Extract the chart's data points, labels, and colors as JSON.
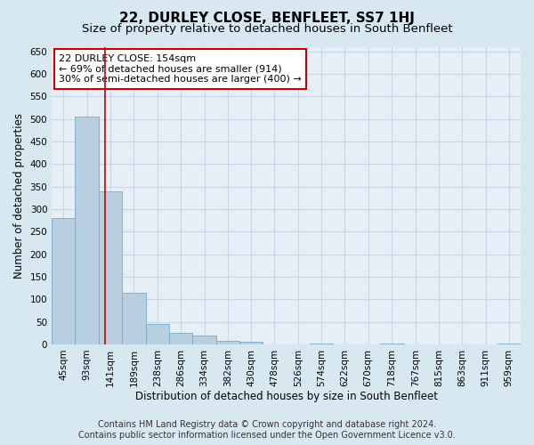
{
  "title": "22, DURLEY CLOSE, BENFLEET, SS7 1HJ",
  "subtitle": "Size of property relative to detached houses in South Benfleet",
  "xlabel": "Distribution of detached houses by size in South Benfleet",
  "ylabel": "Number of detached properties",
  "footer_line1": "Contains HM Land Registry data © Crown copyright and database right 2024.",
  "footer_line2": "Contains public sector information licensed under the Open Government Licence v3.0.",
  "bar_edges": [
    45,
    93,
    141,
    189,
    238,
    286,
    334,
    382,
    430,
    478,
    526,
    574,
    622,
    670,
    718,
    767,
    815,
    863,
    911,
    959,
    1007
  ],
  "bar_heights": [
    280,
    505,
    340,
    115,
    45,
    25,
    20,
    8,
    5,
    0,
    0,
    1,
    0,
    0,
    1,
    0,
    0,
    0,
    0,
    1
  ],
  "bar_color": "#b8cfe0",
  "bar_edge_color": "#7aaac8",
  "property_size": 154,
  "property_label": "22 DURLEY CLOSE: 154sqm",
  "annotation_line1": "← 69% of detached houses are smaller (914)",
  "annotation_line2": "30% of semi-detached houses are larger (400) →",
  "annotation_box_color": "#ffffff",
  "annotation_box_edge": "#cc0000",
  "red_line_color": "#cc0000",
  "ylim": [
    0,
    660
  ],
  "yticks": [
    0,
    50,
    100,
    150,
    200,
    250,
    300,
    350,
    400,
    450,
    500,
    550,
    600,
    650
  ],
  "bg_color": "#d8e8f0",
  "plot_bg_color": "#e6eff6",
  "grid_color": "#c8d8e8",
  "title_fontsize": 11,
  "subtitle_fontsize": 9.5,
  "axis_label_fontsize": 8.5,
  "tick_fontsize": 7.5,
  "annotation_fontsize": 8,
  "footer_fontsize": 7
}
